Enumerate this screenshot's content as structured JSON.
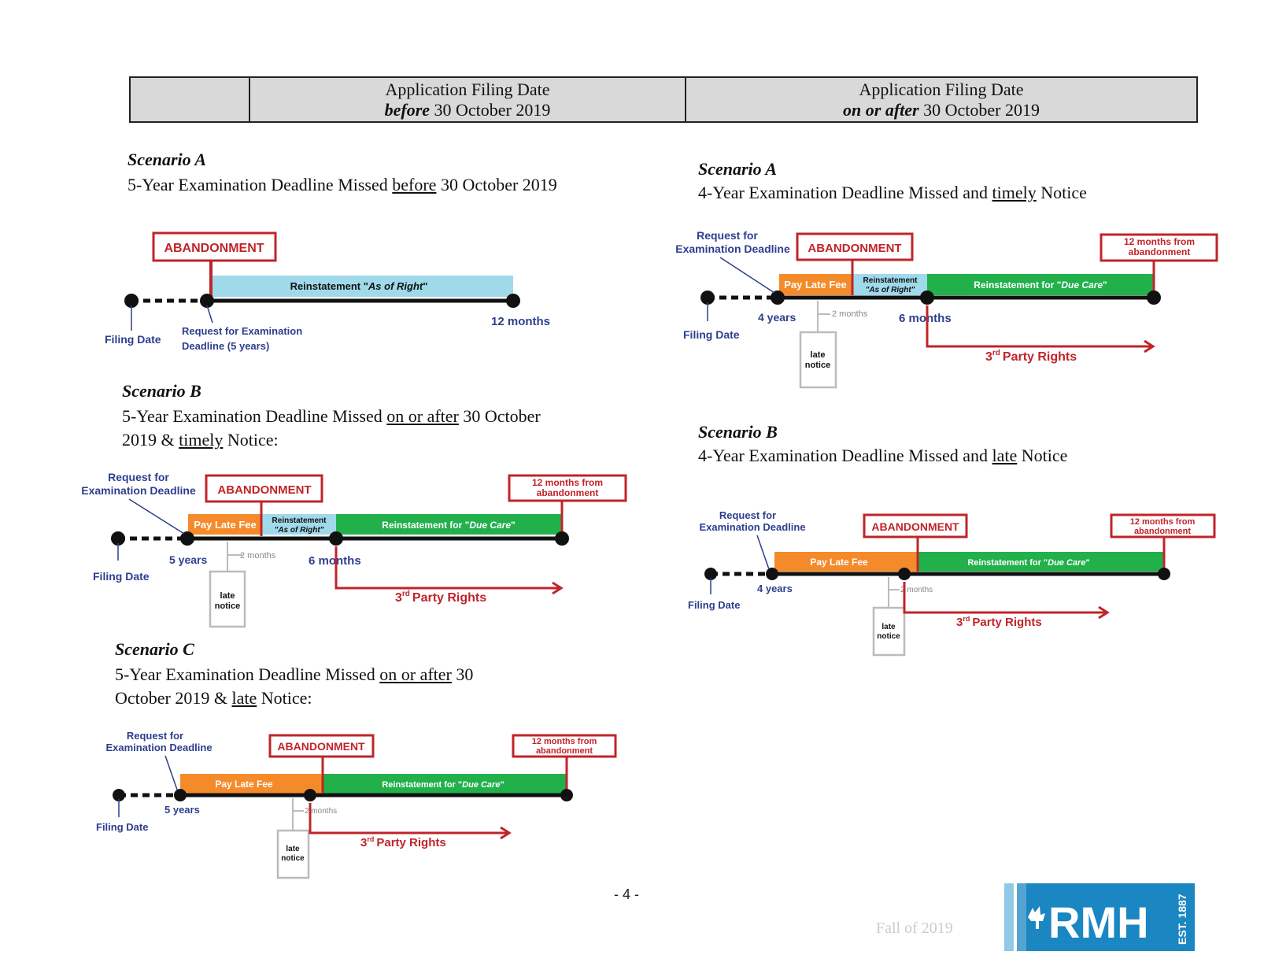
{
  "header": {
    "col1": {
      "line1": "Application Filing Date",
      "em": "before",
      "rest": " 30 October 2019"
    },
    "col2": {
      "line1": "Application Filing Date",
      "em": "on or after",
      "rest": " 30 October 2019"
    }
  },
  "left": {
    "a": {
      "title": "Scenario A",
      "d1": "5-Year Examination Deadline Missed ",
      "d_u": "before",
      "d2": " 30 October 2019"
    },
    "b": {
      "title": "Scenario B",
      "d1": "5-Year Examination Deadline Missed ",
      "d_u1": "on or after",
      "d2": " 30 October",
      "d3": "2019 & ",
      "d_u2": "timely",
      "d4": " Notice:"
    },
    "c": {
      "title": "Scenario C",
      "d1": "5-Year Examination Deadline Missed ",
      "d_u1": "on or after",
      "d2": " 30",
      "d3": "October 2019 & ",
      "d_u2": "late",
      "d4": " Notice:"
    }
  },
  "right": {
    "a": {
      "title": "Scenario A",
      "d1": "4-Year Examination Deadline Missed and ",
      "d_u": "timely",
      "d2": " Notice"
    },
    "b": {
      "title": "Scenario B",
      "d1": "4-Year Examination Deadline Missed and ",
      "d_u": "late",
      "d2": " Notice"
    }
  },
  "labels": {
    "abandonment": "ABANDONMENT",
    "filing_date": "Filing Date",
    "request_for": "Request for",
    "exam_deadline": "Examination Deadline",
    "request_for_exam": "Request for Examination",
    "deadline_5y": "Deadline (5 years)",
    "as_of_right_prefix": "Reinstatement \"",
    "as_of_right_em": "As of Right",
    "as_of_right_suffix": "\"",
    "reinst_small": "Reinstatement",
    "as_of_right_q": "\"As of Right\"",
    "twelve_months": "12 months",
    "twelve_from_1": "12 months from",
    "twelve_from_2": "abandonment",
    "pay_late_fee": "Pay Late Fee",
    "due_care_prefix": "Reinstatement for \"",
    "due_care_em": "Due Care",
    "due_care_suffix": "\"",
    "five_years": "5 years",
    "four_years": "4 years",
    "two_months": "2 months",
    "six_months": "6 months",
    "late": "late",
    "notice": "notice",
    "third": "3",
    "rd": "rd",
    "party_rights": "Party Rights"
  },
  "colors": {
    "red": "#c0242a",
    "blue_label": "#2e3e8e",
    "orange": "#f58a2a",
    "green": "#22b04b",
    "light_blue": "#9fd9ea",
    "logo_blue": "#1a86c2"
  },
  "footer": {
    "page": "- 4 -",
    "season": "Fall of 2019"
  },
  "logo": {
    "text": "RMH",
    "est": "EST. 1887"
  }
}
